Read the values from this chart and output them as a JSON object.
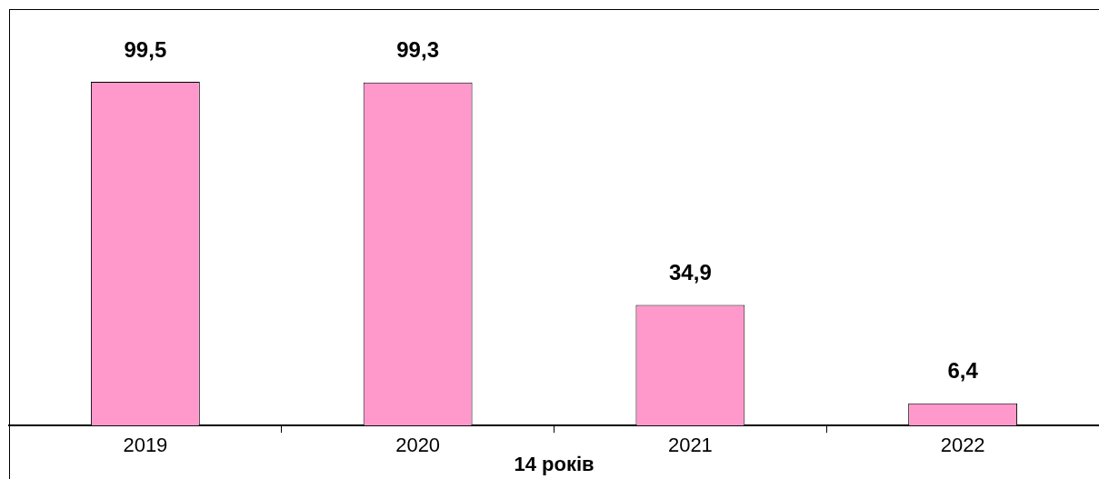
{
  "chart_data": {
    "type": "bar",
    "xlabel": "14 років",
    "categories": [
      "2019",
      "2020",
      "2021",
      "2022"
    ],
    "values": [
      99.5,
      99.3,
      34.9,
      6.4
    ],
    "value_labels": [
      "99,5",
      "99,3",
      "34,9",
      "6,4"
    ],
    "color": "#ff99cc",
    "grid": false,
    "legend": false
  }
}
